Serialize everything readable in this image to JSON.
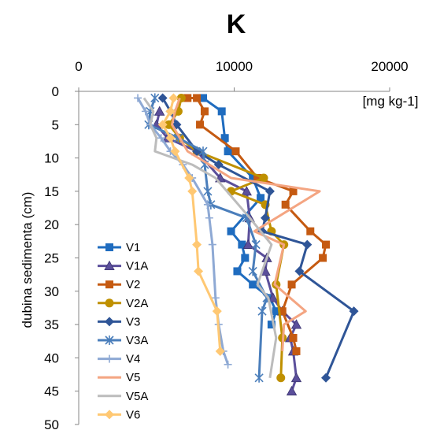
{
  "chart_data": {
    "type": "line",
    "title": "K",
    "unit_label": "[mg kg-1]",
    "ylabel": "dubina sedimenta (cm)",
    "xlabel": "",
    "xlim": [
      0,
      20000
    ],
    "ylim": [
      0,
      50
    ],
    "x_ticks": [
      0,
      10000,
      20000
    ],
    "y_ticks": [
      0,
      5,
      10,
      15,
      20,
      25,
      30,
      35,
      40,
      45,
      50
    ],
    "y_inverted": true,
    "x_axis_position": "top",
    "grid": false,
    "legend_position": "bottom-left",
    "series": [
      {
        "name": "V1",
        "color": "#1f6cbf",
        "marker": "square",
        "points": [
          [
            8000,
            1
          ],
          [
            9200,
            3
          ],
          [
            9400,
            7
          ],
          [
            9600,
            9
          ],
          [
            11200,
            13
          ],
          [
            11700,
            16
          ],
          [
            9800,
            21
          ],
          [
            10500,
            23
          ],
          [
            10700,
            25
          ],
          [
            10200,
            27
          ],
          [
            11200,
            29
          ],
          [
            12300,
            31
          ],
          [
            12700,
            33
          ],
          [
            12400,
            35
          ]
        ]
      },
      {
        "name": "V1A",
        "color": "#5b4f9b",
        "marker": "triangle",
        "points": [
          [
            5200,
            3
          ],
          [
            5000,
            5
          ],
          [
            5700,
            7
          ],
          [
            7600,
            9
          ],
          [
            9100,
            13
          ],
          [
            10800,
            15
          ],
          [
            11000,
            19
          ],
          [
            10900,
            23
          ],
          [
            12100,
            25
          ],
          [
            12000,
            27
          ],
          [
            12500,
            31
          ],
          [
            13100,
            33
          ],
          [
            14000,
            35
          ],
          [
            13600,
            37
          ],
          [
            13800,
            39
          ],
          [
            14000,
            43
          ],
          [
            13700,
            45
          ]
        ]
      },
      {
        "name": "V2",
        "color": "#c55a11",
        "marker": "square",
        "points": [
          [
            7000,
            1
          ],
          [
            7600,
            1
          ],
          [
            8100,
            3
          ],
          [
            7800,
            5
          ],
          [
            10100,
            9
          ],
          [
            11500,
            13
          ],
          [
            13800,
            15
          ],
          [
            13300,
            17
          ],
          [
            14900,
            21
          ],
          [
            15900,
            23
          ],
          [
            15700,
            25
          ],
          [
            13700,
            29
          ],
          [
            13100,
            33
          ],
          [
            13800,
            37
          ],
          [
            14000,
            39
          ]
        ]
      },
      {
        "name": "V2A",
        "color": "#bf9000",
        "marker": "circle",
        "points": [
          [
            6600,
            1
          ],
          [
            6400,
            3
          ],
          [
            5800,
            5
          ],
          [
            6500,
            7
          ],
          [
            7600,
            9
          ],
          [
            11900,
            13
          ],
          [
            9800,
            15
          ],
          [
            12000,
            17
          ],
          [
            12400,
            21
          ],
          [
            13200,
            23
          ],
          [
            12700,
            29
          ],
          [
            13100,
            37
          ],
          [
            13000,
            43
          ]
        ]
      },
      {
        "name": "V3",
        "color": "#2f5597",
        "marker": "diamond",
        "points": [
          [
            5400,
            1
          ],
          [
            5900,
            3
          ],
          [
            6300,
            5
          ],
          [
            7600,
            9
          ],
          [
            9000,
            11
          ],
          [
            12300,
            15
          ],
          [
            12000,
            19
          ],
          [
            11800,
            21
          ],
          [
            14700,
            23
          ],
          [
            14200,
            27
          ],
          [
            17700,
            33
          ],
          [
            15900,
            43
          ]
        ]
      },
      {
        "name": "V3A",
        "color": "#4a7ebb",
        "marker": "star",
        "points": [
          [
            4900,
            1
          ],
          [
            4600,
            3
          ],
          [
            4500,
            5
          ],
          [
            6400,
            7
          ],
          [
            8000,
            9
          ],
          [
            8100,
            11
          ],
          [
            8300,
            15
          ],
          [
            8500,
            17
          ],
          [
            10800,
            19
          ],
          [
            11400,
            23
          ],
          [
            11200,
            27
          ],
          [
            12100,
            31
          ],
          [
            11800,
            33
          ],
          [
            11600,
            43
          ]
        ]
      },
      {
        "name": "V4",
        "color": "#8ea9d4",
        "marker": "plus",
        "points": [
          [
            3800,
            1
          ],
          [
            4300,
            3
          ],
          [
            4600,
            5
          ],
          [
            5300,
            7
          ],
          [
            5900,
            9
          ],
          [
            6700,
            11
          ],
          [
            7300,
            13
          ],
          [
            8300,
            17
          ],
          [
            8400,
            19
          ],
          [
            8600,
            23
          ],
          [
            8800,
            31
          ],
          [
            9000,
            35
          ],
          [
            9300,
            39
          ],
          [
            9600,
            41
          ]
        ]
      },
      {
        "name": "V5",
        "color": "#f4a582",
        "marker": "none",
        "points": [
          [
            6500,
            1
          ],
          [
            6200,
            3
          ],
          [
            6000,
            5
          ],
          [
            7000,
            9
          ],
          [
            9800,
            13
          ],
          [
            15500,
            15
          ],
          [
            11300,
            21
          ],
          [
            13200,
            23
          ],
          [
            12600,
            29
          ],
          [
            14600,
            33
          ],
          [
            13200,
            35
          ],
          [
            13100,
            39
          ]
        ]
      },
      {
        "name": "V5A",
        "color": "#bcbcbc",
        "marker": "none",
        "points": [
          [
            4200,
            1
          ],
          [
            4800,
            3
          ],
          [
            4600,
            5
          ],
          [
            5000,
            7
          ],
          [
            4900,
            9
          ],
          [
            7300,
            11
          ],
          [
            8800,
            13
          ],
          [
            11000,
            19
          ],
          [
            12400,
            23
          ],
          [
            11500,
            29
          ],
          [
            12200,
            31
          ],
          [
            12700,
            37
          ],
          [
            12300,
            43
          ]
        ]
      },
      {
        "name": "V6",
        "color": "#ffc873",
        "marker": "diamond",
        "points": [
          [
            6100,
            1
          ],
          [
            5900,
            3
          ],
          [
            5400,
            5
          ],
          [
            5900,
            7
          ],
          [
            6200,
            9
          ],
          [
            7100,
            13
          ],
          [
            7300,
            15
          ],
          [
            7600,
            23
          ],
          [
            7700,
            27
          ],
          [
            8900,
            33
          ],
          [
            9100,
            39
          ]
        ]
      }
    ]
  }
}
